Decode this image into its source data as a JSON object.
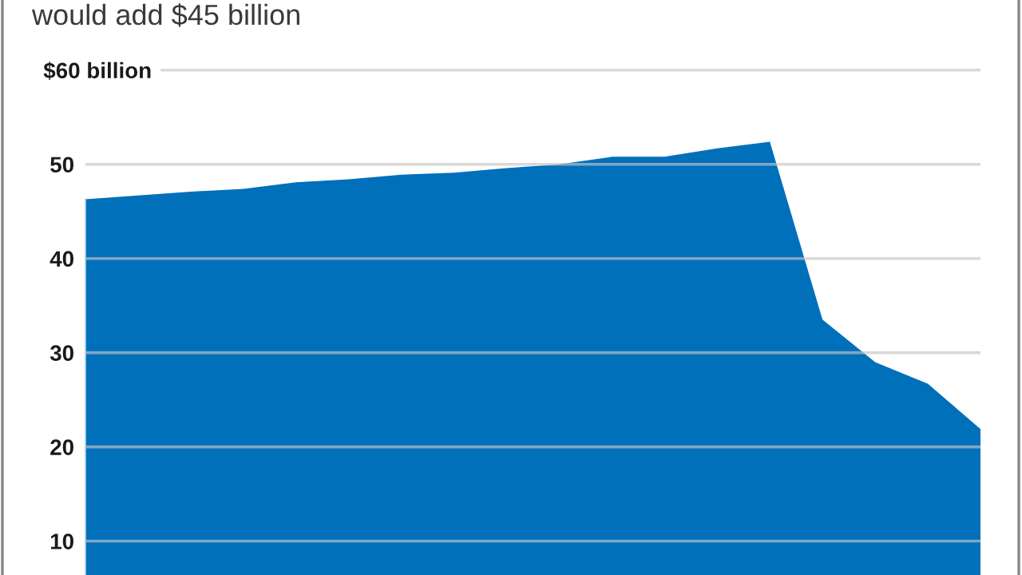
{
  "chart_data": {
    "type": "area",
    "title": "would add $45 billion",
    "categories": [
      null,
      null,
      null,
      null,
      null,
      null,
      null,
      null,
      null,
      null,
      null,
      null,
      null,
      null,
      null,
      null,
      null,
      null
    ],
    "values": [
      46.3,
      46.7,
      47.1,
      47.4,
      48.1,
      48.4,
      48.9,
      49.1,
      49.6,
      50.0,
      50.8,
      50.8,
      51.7,
      52.4,
      33.5,
      29.0,
      26.7,
      21.9
    ],
    "color": "#0070bb",
    "ylim": [
      6.4,
      60
    ],
    "yticks": [
      10,
      20,
      30,
      40,
      50,
      {
        "value": 60,
        "label": "$60 billion"
      }
    ],
    "grid": "y",
    "tick_labels": "y"
  }
}
